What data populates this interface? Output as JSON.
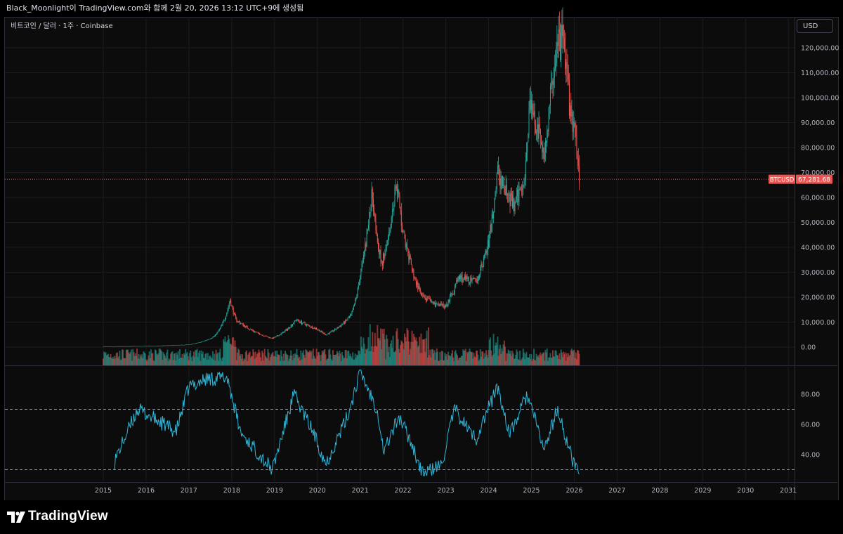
{
  "header": {
    "watermark_text": "Black_Moonlight이 TradingView.com와 함께 2월 20, 2026 13:12 UTC+9에 생성됨"
  },
  "symbol_legend": {
    "text": "비트코인 / 달러 · 1주 · Coinbase"
  },
  "currency_button": {
    "label": "USD"
  },
  "last_price": {
    "symbol": "BTCUSD",
    "value": "67,281.68"
  },
  "brand": {
    "name": "TradingView"
  },
  "colors": {
    "up": "#26a69a",
    "down": "#ef5350",
    "price_line": "#ef5350",
    "rsi": "#2fb6d8",
    "grid": "#1c1c1c"
  },
  "chart_data": [
    {
      "type": "candlestick",
      "title": "비트코인 / 달러 · 1주 · Coinbase",
      "x_tick_labels": [
        "2015",
        "2016",
        "2017",
        "2018",
        "2019",
        "2020",
        "2021",
        "2022",
        "2023",
        "2024",
        "2025",
        "2026",
        "2027",
        "2028",
        "2029",
        "2030",
        "2031"
      ],
      "y_tick_labels": [
        "0.00",
        "10,000.00",
        "20,000.00",
        "30,000.00",
        "40,000.00",
        "50,000.00",
        "60,000.00",
        "70,000.00",
        "80,000.00",
        "90,000.00",
        "100,000.00",
        "110,000.00",
        "120,000.00"
      ],
      "ylim": [
        0,
        125000
      ],
      "approx_price_path": [
        {
          "x": 2015.0,
          "y": 250
        },
        {
          "x": 2016.0,
          "y": 430
        },
        {
          "x": 2017.0,
          "y": 1000
        },
        {
          "x": 2017.6,
          "y": 4500
        },
        {
          "x": 2017.96,
          "y": 19000
        },
        {
          "x": 2018.1,
          "y": 11000
        },
        {
          "x": 2018.5,
          "y": 6500
        },
        {
          "x": 2018.95,
          "y": 3500
        },
        {
          "x": 2019.5,
          "y": 11000
        },
        {
          "x": 2020.0,
          "y": 7200
        },
        {
          "x": 2020.2,
          "y": 5000
        },
        {
          "x": 2020.8,
          "y": 13000
        },
        {
          "x": 2021.0,
          "y": 29000
        },
        {
          "x": 2021.28,
          "y": 63000
        },
        {
          "x": 2021.5,
          "y": 33000
        },
        {
          "x": 2021.85,
          "y": 67000
        },
        {
          "x": 2022.0,
          "y": 46000
        },
        {
          "x": 2022.45,
          "y": 20000
        },
        {
          "x": 2022.85,
          "y": 16500
        },
        {
          "x": 2023.0,
          "y": 16600
        },
        {
          "x": 2023.3,
          "y": 28000
        },
        {
          "x": 2023.7,
          "y": 26000
        },
        {
          "x": 2024.0,
          "y": 42000
        },
        {
          "x": 2024.2,
          "y": 70000
        },
        {
          "x": 2024.6,
          "y": 56000
        },
        {
          "x": 2024.85,
          "y": 70000
        },
        {
          "x": 2024.95,
          "y": 98000
        },
        {
          "x": 2025.3,
          "y": 78000
        },
        {
          "x": 2025.55,
          "y": 118000
        },
        {
          "x": 2025.75,
          "y": 124000
        },
        {
          "x": 2025.9,
          "y": 95000
        },
        {
          "x": 2026.0,
          "y": 88000
        },
        {
          "x": 2026.13,
          "y": 67281.68
        }
      ],
      "last_value": 67281.68
    },
    {
      "type": "line",
      "series": [
        {
          "name": "",
          "values": "RSI-style oscillator (approx.)"
        }
      ],
      "y_tick_labels": [
        "40.00",
        "60.00",
        "80.00"
      ],
      "ylim": [
        24,
        97
      ],
      "reference_lines": [
        30,
        70
      ],
      "approx_path": [
        {
          "x": 2015.25,
          "y": 35
        },
        {
          "x": 2015.8,
          "y": 70
        },
        {
          "x": 2016.3,
          "y": 62
        },
        {
          "x": 2016.7,
          "y": 55
        },
        {
          "x": 2017.0,
          "y": 85
        },
        {
          "x": 2017.4,
          "y": 90
        },
        {
          "x": 2017.9,
          "y": 91
        },
        {
          "x": 2018.2,
          "y": 55
        },
        {
          "x": 2018.5,
          "y": 45
        },
        {
          "x": 2018.95,
          "y": 30
        },
        {
          "x": 2019.45,
          "y": 80
        },
        {
          "x": 2019.9,
          "y": 55
        },
        {
          "x": 2020.2,
          "y": 34
        },
        {
          "x": 2020.7,
          "y": 65
        },
        {
          "x": 2021.0,
          "y": 95
        },
        {
          "x": 2021.4,
          "y": 70
        },
        {
          "x": 2021.55,
          "y": 42
        },
        {
          "x": 2021.9,
          "y": 65
        },
        {
          "x": 2022.2,
          "y": 48
        },
        {
          "x": 2022.45,
          "y": 27
        },
        {
          "x": 2022.9,
          "y": 33
        },
        {
          "x": 2023.2,
          "y": 70
        },
        {
          "x": 2023.7,
          "y": 50
        },
        {
          "x": 2024.2,
          "y": 85
        },
        {
          "x": 2024.5,
          "y": 53
        },
        {
          "x": 2024.9,
          "y": 80
        },
        {
          "x": 2025.3,
          "y": 43
        },
        {
          "x": 2025.6,
          "y": 70
        },
        {
          "x": 2025.95,
          "y": 37
        },
        {
          "x": 2026.13,
          "y": 27
        }
      ]
    }
  ]
}
